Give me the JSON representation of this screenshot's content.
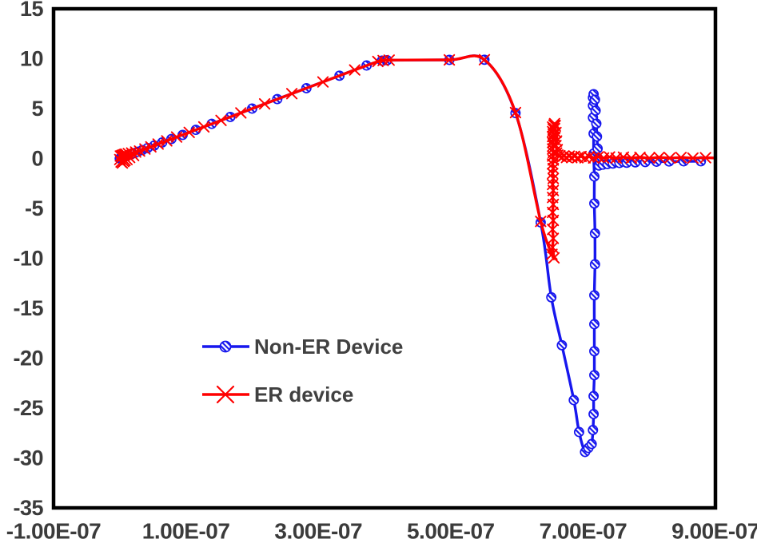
{
  "chart_data": {
    "type": "line",
    "title": "",
    "xlabel": "",
    "ylabel": "",
    "grid": false,
    "x_values_scale": "1e-07",
    "xlim": [
      -1,
      9
    ],
    "ylim": [
      -35,
      15
    ],
    "x_ticks": {
      "labels": [
        "-1.00E-07",
        "1.00E-07",
        "3.00E-07",
        "5.00E-07",
        "7.00E-07",
        "9.00E-07"
      ],
      "values": [
        -1,
        1,
        3,
        5,
        7,
        9
      ]
    },
    "y_ticks": {
      "labels": [
        "15",
        "10",
        "5",
        "0",
        "-5",
        "-10",
        "-15",
        "-20",
        "-25",
        "-30",
        "-35"
      ],
      "values": [
        15,
        10,
        5,
        0,
        -5,
        -10,
        -15,
        -20,
        -25,
        -30,
        -35
      ]
    },
    "colors": {
      "axis_text": "#3b3b3b",
      "plot_border": "#000000",
      "non_er_blue": "#1717ee",
      "er_red": "#ff0000",
      "legend_text": "#404040"
    },
    "legend": {
      "position": "inside-bottom-left",
      "items": [
        "Non-ER Device",
        "ER device"
      ]
    },
    "series": [
      {
        "name": "Non-ER Device",
        "color": "#1717ee",
        "marker": "hatched-circle",
        "points": [
          [
            0,
            0
          ],
          [
            0.02,
            0.05
          ],
          [
            0.04,
            0.1
          ],
          [
            0.06,
            0.15
          ],
          [
            0.09,
            0.22
          ],
          [
            0.12,
            0.3
          ],
          [
            0.16,
            0.4
          ],
          [
            0.21,
            0.52
          ],
          [
            0.27,
            0.67
          ],
          [
            0.34,
            0.85
          ],
          [
            0.42,
            1.05
          ],
          [
            0.52,
            1.3
          ],
          [
            0.64,
            1.6
          ],
          [
            0.78,
            1.95
          ],
          [
            0.95,
            2.37
          ],
          [
            1.15,
            2.87
          ],
          [
            1.39,
            3.47
          ],
          [
            1.67,
            4.17
          ],
          [
            2,
            5
          ],
          [
            2.38,
            5.95
          ],
          [
            2.82,
            7.05
          ],
          [
            3.32,
            8.3
          ],
          [
            3.73,
            9.32
          ],
          [
            3.96,
            9.8
          ],
          [
            4.04,
            9.85
          ],
          [
            4.98,
            9.88
          ],
          [
            5.51,
            9.9
          ],
          [
            5.98,
            4.55
          ],
          [
            6.36,
            -6.4
          ],
          [
            6.52,
            -13.9
          ],
          [
            6.68,
            -18.7
          ],
          [
            6.86,
            -24.2
          ],
          [
            6.94,
            -27.4
          ],
          [
            7.03,
            -29.4
          ],
          [
            7.08,
            -29
          ],
          [
            7.13,
            -28.6
          ],
          [
            7.15,
            -27.2
          ],
          [
            7.16,
            -25.6
          ],
          [
            7.16,
            -23.8
          ],
          [
            7.17,
            -21.7
          ],
          [
            7.17,
            -19.3
          ],
          [
            7.17,
            -16.6
          ],
          [
            7.17,
            -13.7
          ],
          [
            7.18,
            -10.6
          ],
          [
            7.18,
            -7.5
          ],
          [
            7.17,
            -4.5
          ],
          [
            7.17,
            -1.8
          ],
          [
            7.16,
            0.5
          ],
          [
            7.16,
            2.5
          ],
          [
            7.15,
            4.1
          ],
          [
            7.15,
            5.3
          ],
          [
            7.15,
            6.1
          ],
          [
            7.16,
            6.45
          ],
          [
            7.18,
            5.9
          ],
          [
            7.19,
            4.8
          ],
          [
            7.2,
            3.5
          ],
          [
            7.21,
            2.2
          ],
          [
            7.22,
            1
          ],
          [
            7.23,
            0
          ],
          [
            7.24,
            -0.7
          ],
          [
            7.3,
            -0.62
          ],
          [
            7.37,
            -0.55
          ],
          [
            7.45,
            -0.5
          ],
          [
            7.55,
            -0.45
          ],
          [
            7.66,
            -0.42
          ],
          [
            7.79,
            -0.38
          ],
          [
            7.94,
            -0.35
          ],
          [
            8.11,
            -0.32
          ],
          [
            8.3,
            -0.3
          ],
          [
            8.52,
            -0.28
          ],
          [
            8.78,
            -0.27
          ]
        ]
      },
      {
        "name": "ER device",
        "color": "#ff0000",
        "marker": "x",
        "line_extend": [
          9,
          0.05
        ],
        "points": [
          [
            0,
            -0.1
          ],
          [
            0.01,
            0.25
          ],
          [
            0.02,
            -0.35
          ],
          [
            0.03,
            0.3
          ],
          [
            0.04,
            -0.45
          ],
          [
            0.05,
            0.35
          ],
          [
            0.06,
            -0.3
          ],
          [
            0.07,
            0.4
          ],
          [
            0.08,
            -0.2
          ],
          [
            0.09,
            0.45
          ],
          [
            0.11,
            -0.1
          ],
          [
            0.13,
            0.5
          ],
          [
            0.15,
            0.1
          ],
          [
            0.18,
            0.55
          ],
          [
            0.21,
            0.3
          ],
          [
            0.24,
            0.65
          ],
          [
            0.3,
            0.75
          ],
          [
            0.38,
            0.95
          ],
          [
            0.47,
            1.17
          ],
          [
            0.58,
            1.45
          ],
          [
            0.71,
            1.77
          ],
          [
            0.86,
            2.15
          ],
          [
            1.05,
            2.62
          ],
          [
            1.27,
            3.17
          ],
          [
            1.53,
            3.82
          ],
          [
            1.83,
            4.57
          ],
          [
            2.19,
            5.47
          ],
          [
            2.6,
            6.5
          ],
          [
            3.07,
            7.67
          ],
          [
            3.55,
            8.87
          ],
          [
            3.9,
            9.72
          ],
          [
            3.98,
            9.82
          ],
          [
            4.07,
            9.86
          ],
          [
            4.98,
            9.88
          ],
          [
            5.51,
            9.9
          ],
          [
            5.98,
            4.6
          ],
          [
            6.36,
            -6.3
          ],
          [
            6.53,
            -9.6
          ],
          [
            6.56,
            -9.95
          ],
          [
            6.54,
            -8.9
          ],
          [
            6.55,
            -8
          ],
          [
            6.54,
            -7.1
          ],
          [
            6.55,
            -6.2
          ],
          [
            6.54,
            -5.4
          ],
          [
            6.55,
            -4.6
          ],
          [
            6.54,
            -3.9
          ],
          [
            6.55,
            -3.2
          ],
          [
            6.54,
            -2.6
          ],
          [
            6.55,
            -2
          ],
          [
            6.54,
            -1.5
          ],
          [
            6.55,
            -1
          ],
          [
            6.54,
            -0.55
          ],
          [
            6.55,
            -0.15
          ],
          [
            6.54,
            0.25
          ],
          [
            6.55,
            0.6
          ],
          [
            6.54,
            0.95
          ],
          [
            6.55,
            1.3
          ],
          [
            6.54,
            1.6
          ],
          [
            6.55,
            1.9
          ],
          [
            6.54,
            2.2
          ],
          [
            6.55,
            2.45
          ],
          [
            6.54,
            2.7
          ],
          [
            6.55,
            2.95
          ],
          [
            6.54,
            3.15
          ],
          [
            6.56,
            3.35
          ],
          [
            6.57,
            3.5
          ],
          [
            6.58,
            3.3
          ],
          [
            6.57,
            3
          ],
          [
            6.59,
            2.6
          ],
          [
            6.58,
            2.2
          ],
          [
            6.6,
            1.75
          ],
          [
            6.59,
            1.3
          ],
          [
            6.61,
            0.9
          ],
          [
            6.6,
            0.55
          ],
          [
            6.62,
            0.35
          ],
          [
            6.65,
            0.28
          ],
          [
            6.68,
            0.12
          ],
          [
            6.71,
            0.26
          ],
          [
            6.75,
            0.1
          ],
          [
            6.79,
            0.24
          ],
          [
            6.83,
            0.09
          ],
          [
            6.87,
            0.22
          ],
          [
            6.92,
            0.08
          ],
          [
            6.97,
            0.2
          ],
          [
            7.03,
            0.07
          ],
          [
            7.09,
            0.18
          ],
          [
            7.16,
            0.06
          ],
          [
            7.23,
            0.17
          ],
          [
            7.31,
            0.06
          ],
          [
            7.4,
            0.15
          ],
          [
            7.5,
            0.05
          ],
          [
            7.61,
            0.14
          ],
          [
            7.73,
            0.05
          ],
          [
            7.86,
            0.12
          ],
          [
            8,
            0.05
          ],
          [
            8.15,
            0.11
          ],
          [
            8.31,
            0.05
          ],
          [
            8.48,
            0.1
          ],
          [
            8.66,
            0.05
          ],
          [
            8.85,
            0.08
          ]
        ]
      }
    ]
  }
}
